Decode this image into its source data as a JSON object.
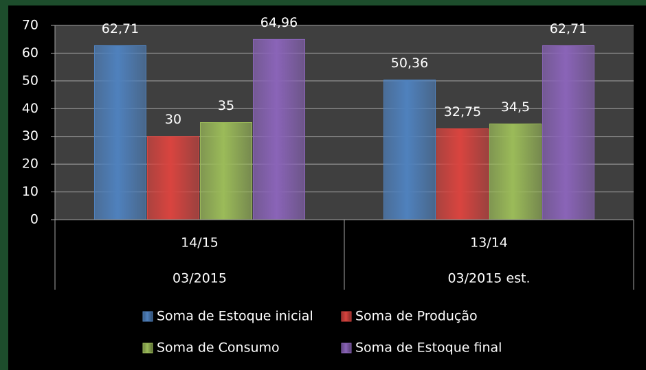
{
  "chart_data": {
    "type": "bar",
    "categories": [
      "14/15",
      "13/14"
    ],
    "category_groups": [
      "03/2015",
      "03/2015 est."
    ],
    "series": [
      {
        "name": "Soma de Estoque inicial",
        "color": "#4f81bd",
        "values": [
          62.71,
          50.36
        ],
        "value_labels": [
          "62,71",
          "50,36"
        ]
      },
      {
        "name": "Soma de Produção",
        "color": "#d9443f",
        "values": [
          30,
          32.75
        ],
        "value_labels": [
          "30",
          "32,75"
        ]
      },
      {
        "name": "Soma de Consumo",
        "color": "#9bbb59",
        "values": [
          35,
          34.5
        ],
        "value_labels": [
          "35",
          "34,5"
        ]
      },
      {
        "name": "Soma de Estoque final",
        "color": "#8a64b8",
        "values": [
          64.96,
          62.71
        ],
        "value_labels": [
          "64,96",
          "62,71"
        ]
      }
    ],
    "ylim": [
      0,
      70
    ],
    "yticks": [
      0,
      10,
      20,
      30,
      40,
      50,
      60,
      70
    ],
    "grid": true,
    "legend": "bottom"
  }
}
